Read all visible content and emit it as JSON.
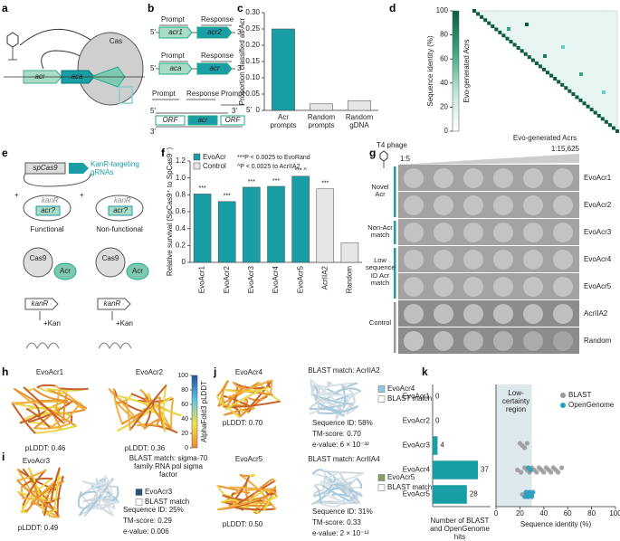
{
  "panel_labels": [
    "a",
    "b",
    "c",
    "d",
    "e",
    "f",
    "g",
    "h",
    "i",
    "j",
    "k"
  ],
  "a": {
    "genes": [
      "acr",
      "aca"
    ],
    "protein": "Cas"
  },
  "b": {
    "prompt": "Prompt",
    "response": "Response",
    "five_prime": "5′",
    "three_prime": "3′",
    "constructs": [
      [
        "acr1",
        "acr2"
      ],
      [
        "aca",
        "acr"
      ],
      [
        "ORF",
        "acr",
        "ORF"
      ]
    ]
  },
  "chart_data": [
    {
      "type": "bar",
      "ylabel": "Proportion classified as Acr",
      "categories": [
        "Acr prompts",
        "Random prompts",
        "Random gDNA"
      ],
      "values": [
        0.25,
        0.02,
        0.03
      ],
      "colors": [
        "#1a9ea6",
        "#e6e6e6",
        "#e6e6e6"
      ],
      "ylim": [
        0,
        0.3
      ],
      "yticks": [
        0,
        0.05,
        {
          "value": 0.1,
          "label": "0.10"
        },
        0.15,
        {
          "value": 0.2,
          "label": "0.20"
        },
        0.25,
        {
          "value": 0.3,
          "label": "0.30"
        }
      ]
    },
    {
      "type": "heatmap",
      "xlabel": "Evo-generated Acrs",
      "ylabel": "Evo-generated Acrs",
      "colorbar_label": "Sequence identity (%)",
      "colorbar_lim": [
        0,
        100
      ],
      "colorbar_ticks": [
        0,
        20,
        40,
        60,
        80,
        100
      ]
    },
    {
      "type": "bar",
      "ylabel": "Relative survival (SpCas9⁺ to SpCas9⁻)",
      "categories": [
        "EvoAcr1",
        "EvoAcr2",
        "EvoAcr3",
        "EvoAcr4",
        "EvoAcr5",
        "AcrIIA2",
        "Random"
      ],
      "series": [
        {
          "name": "EvoAcr",
          "color": "#1a9ea6",
          "values": [
            0.81,
            0.72,
            0.89,
            0.9,
            1.02,
            null,
            null
          ]
        },
        {
          "name": "Control",
          "color": "#e6e6e6",
          "values": [
            null,
            null,
            null,
            null,
            null,
            0.87,
            0.23
          ]
        }
      ],
      "significance": [
        "***",
        "***",
        "***",
        "***",
        "*** ^",
        "***",
        null
      ],
      "annotations": [
        "***P < 0.0025 to EvoRand",
        "^P < 0.0025 to AcrIIA2"
      ],
      "ylim": [
        0,
        1.2
      ],
      "yticks": [
        0,
        0.2,
        0.4,
        0.6,
        0.8,
        {
          "value": 1,
          "label": "1.0"
        },
        1.2
      ]
    },
    {
      "type": "hbar",
      "xlabel": "Number of BLAST and OpenGenome hits",
      "categories": [
        "EvoAcr1",
        "EvoAcr2",
        "EvoAcr3",
        "EvoAcr4",
        "EvoAcr5"
      ],
      "values": [
        0,
        0,
        4,
        37,
        28
      ],
      "color": "#1a9ea6"
    },
    {
      "type": "scatter",
      "xlabel": "Sequence identity (%)",
      "annotation": "Low-certainty region",
      "shaded_region": [
        0,
        30
      ],
      "xlim": [
        0,
        100
      ],
      "xticks": [
        0,
        20,
        40,
        60,
        80,
        100
      ],
      "series": [
        {
          "name": "BLAST",
          "color": "#9a9a9a",
          "y": [
            "EvoAcr3",
            "EvoAcr3",
            "EvoAcr3",
            "EvoAcr3",
            "EvoAcr4",
            "EvoAcr4",
            "EvoAcr4",
            "EvoAcr4",
            "EvoAcr4",
            "EvoAcr4",
            "EvoAcr4",
            "EvoAcr4",
            "EvoAcr4",
            "EvoAcr4",
            "EvoAcr4",
            "EvoAcr4",
            "EvoAcr4",
            "EvoAcr4",
            "EvoAcr4",
            "EvoAcr4",
            "EvoAcr4",
            "EvoAcr4",
            "EvoAcr5",
            "EvoAcr5",
            "EvoAcr5",
            "EvoAcr5",
            "EvoAcr5"
          ],
          "x": [
            20,
            22,
            24,
            26,
            18,
            21,
            24,
            26,
            28,
            30,
            32,
            34,
            36,
            38,
            40,
            42,
            44,
            46,
            48,
            50,
            52,
            55,
            22,
            25,
            28,
            30,
            27
          ]
        },
        {
          "name": "OpenGenome",
          "color": "#2a9fc0",
          "y": [
            "EvoAcr4",
            "EvoAcr4",
            "EvoAcr5",
            "EvoAcr5",
            "EvoAcr5",
            "EvoAcr5",
            "EvoAcr5",
            "EvoAcr5",
            "EvoAcr5",
            "EvoAcr5"
          ],
          "x": [
            27,
            29,
            24,
            25,
            26,
            27,
            28,
            29,
            30,
            31
          ]
        }
      ]
    }
  ],
  "e": {
    "plasmid": "spCas9",
    "grnas": "KanR-targeting gRNAs",
    "resistance": "kanR",
    "candidate": "acr?",
    "plus": "+",
    "functional": "Functional",
    "non_functional": "Non-functional",
    "cas9": "Cas9",
    "acr": "Acr",
    "selection": "+Kan"
  },
  "g": {
    "phage": "T4 phage",
    "dilution_start": "1:5",
    "dilution_end": "1:15,625",
    "rows": [
      "EvoAcr1",
      "EvoAcr2",
      "EvoAcr3",
      "EvoAcr4",
      "EvoAcr5",
      "AcrIIA2",
      "Random"
    ],
    "groups": [
      "Novel Acr",
      "Non-Acr match",
      "Low sequence ID Acr match",
      "Control"
    ]
  },
  "structures": {
    "colorbar_label": "AlphaFold3 pLDDT",
    "colorbar_lim": [
      0,
      100
    ],
    "colorbar_ticks": [
      0,
      20,
      40,
      60,
      80,
      100
    ],
    "items": [
      {
        "name": "EvoAcr1",
        "plddt": "pLDDT: 0.46"
      },
      {
        "name": "EvoAcr2",
        "plddt": "pLDDT: 0.36"
      },
      {
        "name": "EvoAcr3",
        "plddt": "pLDDT: 0.49",
        "match": "BLAST match: sigma-70 family RNA pol sigma factor",
        "legend": [
          "EvoAcr3",
          "BLAST match"
        ],
        "colors": [
          "#2d4e7a",
          "#ffffff"
        ],
        "stats": [
          "Sequence ID: 25%",
          "TM-score: 0.29",
          "e-value: 0.006"
        ]
      },
      {
        "name": "EvoAcr4",
        "plddt": "pLDDT: 0.70",
        "match": "BLAST match: AcrIIA2",
        "legend": [
          "EvoAcr4",
          "BLAST match"
        ],
        "colors": [
          "#8ecae6",
          "#ffffff"
        ],
        "stats": [
          "Sequence ID: 58%",
          "TM-score: 0.70",
          "e-value: 6 × 10⁻³²"
        ]
      },
      {
        "name": "EvoAcr5",
        "plddt": "pLDDT: 0.50",
        "match": "BLAST match: AcrIIA4",
        "legend": [
          "EvoAcr5",
          "BLAST match"
        ],
        "colors": [
          "#8ca05a",
          "#ffffff"
        ],
        "stats": [
          "Sequence ID: 31%",
          "TM-score: 0.33",
          "e-value: 2 × 10⁻¹²"
        ]
      }
    ]
  }
}
